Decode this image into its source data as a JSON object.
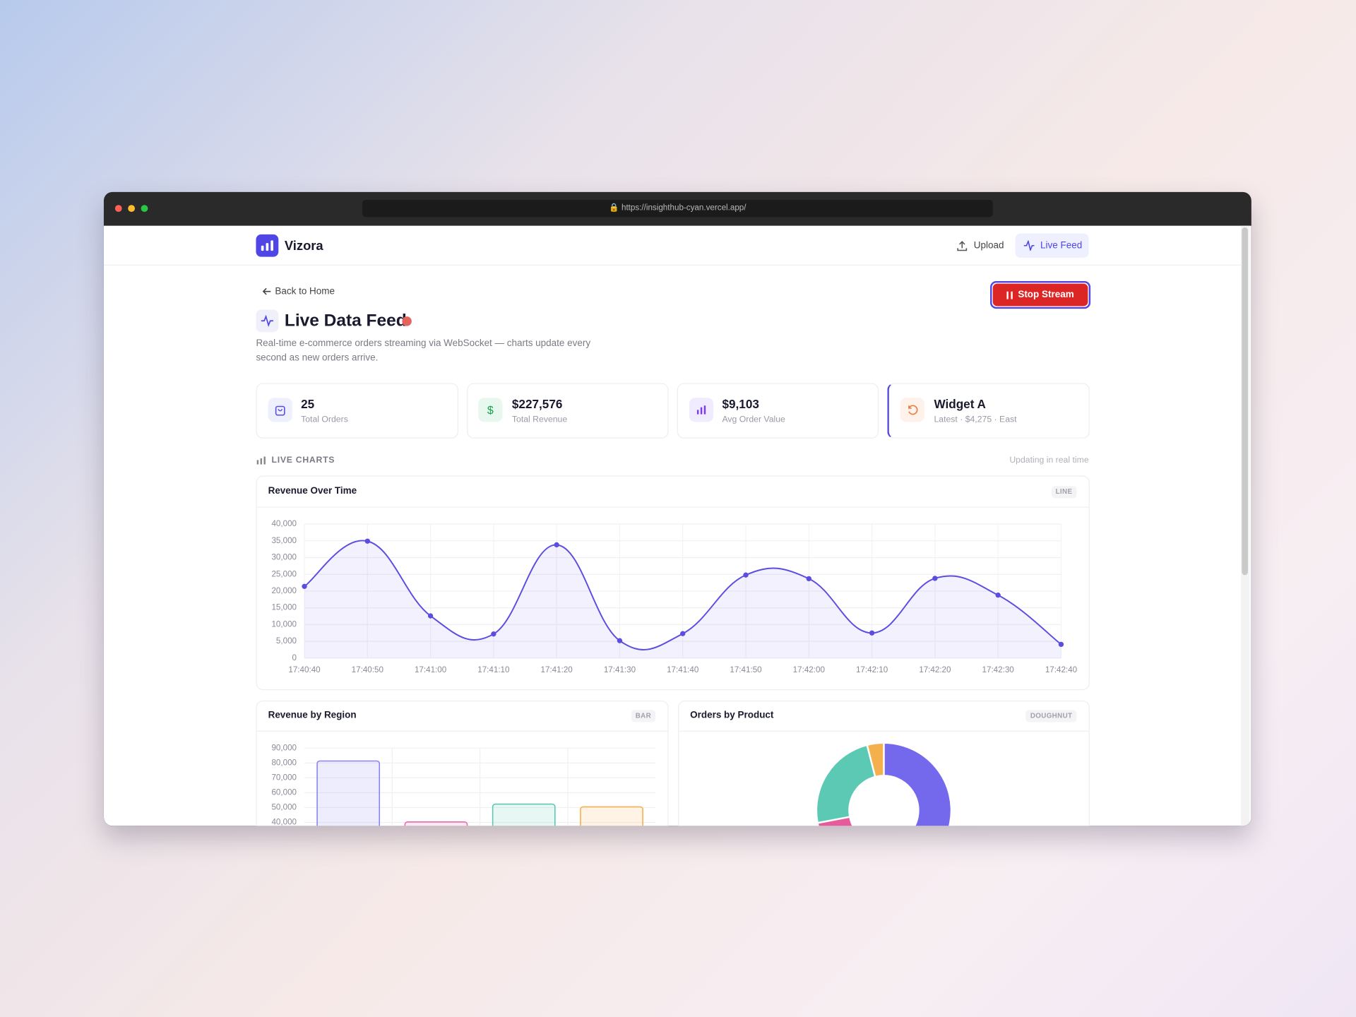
{
  "browser": {
    "url": "https://insighthub-cyan.vercel.app/"
  },
  "nav": {
    "brand": "Vizora",
    "links": [
      "Upload",
      "Live Feed"
    ]
  },
  "header": {
    "back": "Back to Home",
    "title": "Live Data Feed",
    "description": "Real-time e-commerce orders streaming via WebSocket — charts update every second as new orders arrive.",
    "action": "Stop Stream"
  },
  "stats": [
    {
      "value": "25",
      "label": "Total Orders"
    },
    {
      "value": "$227,576",
      "label": "Total Revenue"
    },
    {
      "value": "$9,103",
      "label": "Avg Order Value"
    },
    {
      "value": "Widget A",
      "label": "Latest · $4,275 · East"
    }
  ],
  "section": {
    "title": "LIVE CHARTS",
    "status": "Updating in real time"
  },
  "chart_data": [
    {
      "type": "line",
      "title": "Revenue Over Time",
      "badge": "LINE",
      "categories": [
        "17:40:40",
        "17:40:50",
        "17:41:00",
        "17:41:10",
        "17:41:20",
        "17:41:30",
        "17:41:40",
        "17:41:50",
        "17:42:00",
        "17:42:10",
        "17:42:20",
        "17:42:30",
        "17:42:40"
      ],
      "values": [
        21400,
        34900,
        12600,
        7200,
        33800,
        5200,
        7300,
        24800,
        23700,
        7500,
        23800,
        18800,
        4100
      ],
      "color": "#5b4de0",
      "ylim": [
        0,
        40000
      ],
      "yticks": [
        0,
        {
          "value": 5000,
          "label": "5,000"
        },
        {
          "value": 10000,
          "label": "10,000"
        },
        {
          "value": 15000,
          "label": "15,000"
        },
        {
          "value": 20000,
          "label": "20,000"
        },
        {
          "value": 25000,
          "label": "25,000"
        },
        {
          "value": 30000,
          "label": "30,000"
        },
        {
          "value": 35000,
          "label": "35,000"
        },
        {
          "value": 40000,
          "label": "40,000"
        }
      ],
      "grid": true
    },
    {
      "type": "bar",
      "title": "Revenue by Region",
      "badge": "BAR",
      "values": [
        81300,
        40300,
        52300,
        50500
      ],
      "colors": [
        "#8b84f0",
        "#f06aae",
        "#5ec8b5",
        "#f6b04d"
      ],
      "ylim": [
        0,
        90000
      ],
      "yticks": [
        {
          "value": 40000,
          "label": "40,000"
        },
        {
          "value": 50000,
          "label": "50,000"
        },
        {
          "value": 60000,
          "label": "60,000"
        },
        {
          "value": 70000,
          "label": "70,000"
        },
        {
          "value": 80000,
          "label": "80,000"
        },
        {
          "value": 90000,
          "label": "90,000"
        }
      ],
      "grid": true
    },
    {
      "type": "doughnut",
      "title": "Orders by Product",
      "badge": "DOUGHNUT",
      "values": [
        14,
        4,
        6,
        1
      ],
      "colors": [
        "#7468ec",
        "#e65b9b",
        "#5cc9b5",
        "#f5b04e"
      ]
    }
  ]
}
